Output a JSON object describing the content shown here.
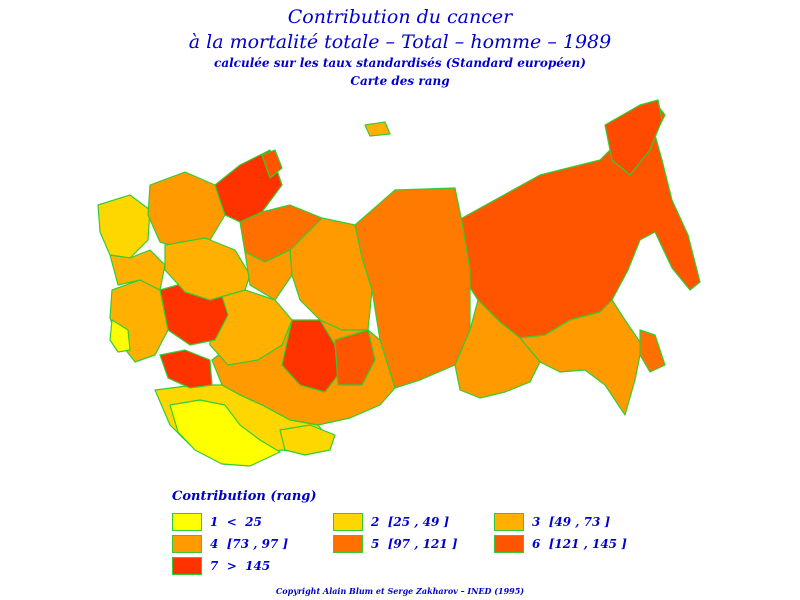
{
  "titles": {
    "line1": "Contribution du cancer",
    "line2": "à la mortalité totale – Total – homme – 1989",
    "line3": "calculée sur les taux standardisés (Standard européen)",
    "line4": "Carte des rang"
  },
  "legend": {
    "title": "Contribution (rang)",
    "items": [
      {
        "label": "1  <  25",
        "color": "#ffff00"
      },
      {
        "label": "2  [25 , 49 ]",
        "color": "#ffd700"
      },
      {
        "label": "3  [49 , 73 ]",
        "color": "#ffb000"
      },
      {
        "label": "4  [73 , 97 ]",
        "color": "#ff9a00"
      },
      {
        "label": "5  [97 , 121 ]",
        "color": "#ff7000"
      },
      {
        "label": "6  [121 , 145 ]",
        "color": "#ff5500"
      },
      {
        "label": "7  >  145",
        "color": "#ff3300"
      }
    ]
  },
  "map": {
    "border_color": "#33cc33"
  },
  "footer": "Copyright Alain Blum et Serge Zakharov – INED (1995)"
}
